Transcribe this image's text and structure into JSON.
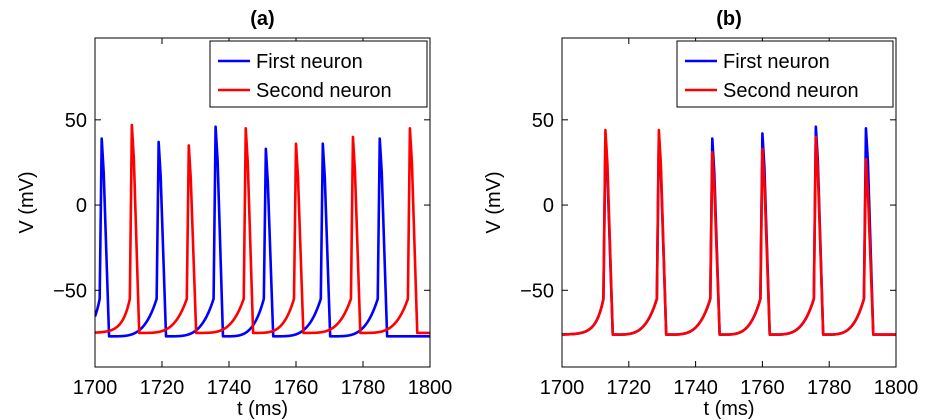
{
  "chart_data": [
    {
      "type": "line",
      "title": "(a)",
      "xlabel": "t (ms)",
      "ylabel": "V (mV)",
      "xlim": [
        1700,
        1800
      ],
      "ylim": [
        -95,
        98
      ],
      "xticks": [
        1700,
        1720,
        1740,
        1760,
        1780,
        1800
      ],
      "yticks": [
        -50,
        0,
        50
      ],
      "grid": false,
      "legend_position": "top-right",
      "series": [
        {
          "name": "First neuron",
          "color": "#0000ff",
          "rest": -77,
          "spikes": [
            [
              1702,
              39
            ],
            [
              1719,
              37
            ],
            [
              1736,
              46
            ],
            [
              1751,
              33
            ],
            [
              1768,
              36
            ],
            [
              1785,
              39
            ]
          ]
        },
        {
          "name": "Second neuron",
          "color": "#ff0000",
          "rest": -75,
          "spikes": [
            [
              1711,
              47
            ],
            [
              1728,
              35
            ],
            [
              1745,
              45
            ],
            [
              1760,
              36
            ],
            [
              1777,
              40
            ],
            [
              1794,
              45
            ]
          ]
        }
      ]
    },
    {
      "type": "line",
      "title": "(b)",
      "xlabel": "t (ms)",
      "ylabel": "V (mV)",
      "xlim": [
        1700,
        1800
      ],
      "ylim": [
        -95,
        98
      ],
      "xticks": [
        1700,
        1720,
        1740,
        1760,
        1780,
        1800
      ],
      "yticks": [
        -50,
        0,
        50
      ],
      "grid": false,
      "legend_position": "top-right",
      "series": [
        {
          "name": "First neuron",
          "color": "#0000ff",
          "rest": -76,
          "spikes": [
            [
              1713,
              38
            ],
            [
              1729,
              40
            ],
            [
              1745,
              39
            ],
            [
              1760,
              42
            ],
            [
              1776,
              46
            ],
            [
              1791,
              45
            ]
          ]
        },
        {
          "name": "Second neuron",
          "color": "#ff0000",
          "rest": -76,
          "spikes": [
            [
              1713,
              44
            ],
            [
              1729,
              44
            ],
            [
              1745,
              31
            ],
            [
              1760,
              33
            ],
            [
              1776,
              40
            ],
            [
              1791,
              27
            ]
          ]
        }
      ]
    }
  ]
}
